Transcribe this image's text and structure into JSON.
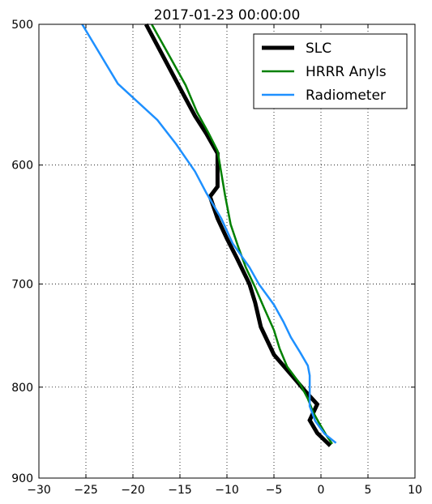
{
  "chart_data": {
    "type": "line",
    "title": "2017-01-23 00:00:00",
    "xlabel": "",
    "ylabel": "",
    "xlim": [
      -30,
      10
    ],
    "ylim": [
      900,
      500
    ],
    "y_scale": "log",
    "x_ticks": [
      -30,
      -25,
      -20,
      -15,
      -10,
      -5,
      0,
      5,
      10
    ],
    "x_tick_labels": [
      "−30",
      "−25",
      "−20",
      "−15",
      "−10",
      "−5",
      "0",
      "5",
      "10"
    ],
    "y_ticks": [
      500,
      600,
      700,
      800,
      900
    ],
    "y_tick_labels": [
      "500",
      "600",
      "700",
      "800",
      "900"
    ],
    "grid": true,
    "legend_position": "top-right",
    "series": [
      {
        "name": "SLC",
        "color": "#000000",
        "line_width": 5,
        "points": [
          [
            -18.6,
            500
          ],
          [
            -16.8,
            521
          ],
          [
            -15.0,
            543
          ],
          [
            -13.4,
            563
          ],
          [
            -12.2,
            576
          ],
          [
            -11.0,
            591
          ],
          [
            -11.0,
            617
          ],
          [
            -11.8,
            625
          ],
          [
            -11.0,
            643
          ],
          [
            -10.0,
            660
          ],
          [
            -9.0,
            676
          ],
          [
            -7.6,
            700
          ],
          [
            -7.0,
            717
          ],
          [
            -6.4,
            740
          ],
          [
            -5.0,
            767
          ],
          [
            -3.0,
            789
          ],
          [
            -1.6,
            805
          ],
          [
            -0.4,
            818
          ],
          [
            -1.2,
            835
          ],
          [
            -0.4,
            849
          ],
          [
            0.4,
            857
          ],
          [
            1.0,
            863
          ]
        ]
      },
      {
        "name": "HRRR Anyls",
        "color": "#008000",
        "line_width": 2.5,
        "points": [
          [
            -18.0,
            500
          ],
          [
            -16.2,
            520
          ],
          [
            -14.4,
            541
          ],
          [
            -13.2,
            560
          ],
          [
            -12.0,
            575
          ],
          [
            -11.0,
            589
          ],
          [
            -10.6,
            606
          ],
          [
            -10.2,
            624
          ],
          [
            -9.6,
            648
          ],
          [
            -8.8,
            667
          ],
          [
            -8.0,
            685
          ],
          [
            -7.0,
            703
          ],
          [
            -6.0,
            723
          ],
          [
            -5.0,
            743
          ],
          [
            -4.4,
            761
          ],
          [
            -3.6,
            779
          ],
          [
            -2.2,
            797
          ],
          [
            -1.4,
            812
          ],
          [
            -0.8,
            827
          ],
          [
            -0.2,
            838
          ],
          [
            0.6,
            852
          ],
          [
            1.2,
            861
          ]
        ]
      },
      {
        "name": "Radiometer",
        "color": "#1E90FF",
        "line_width": 2.5,
        "points": [
          [
            -25.4,
            500
          ],
          [
            -21.6,
            540
          ],
          [
            -17.4,
            566
          ],
          [
            -15.4,
            584
          ],
          [
            -13.4,
            605
          ],
          [
            -12.2,
            622
          ],
          [
            -10.6,
            643
          ],
          [
            -9.4,
            664
          ],
          [
            -7.6,
            685
          ],
          [
            -6.6,
            700
          ],
          [
            -5.0,
            719
          ],
          [
            -4.0,
            735
          ],
          [
            -3.2,
            750
          ],
          [
            -2.2,
            765
          ],
          [
            -1.4,
            778
          ],
          [
            -1.2,
            788
          ],
          [
            -1.2,
            820
          ],
          [
            -0.6,
            836
          ],
          [
            0.4,
            850
          ],
          [
            1.6,
            860
          ]
        ]
      }
    ]
  }
}
